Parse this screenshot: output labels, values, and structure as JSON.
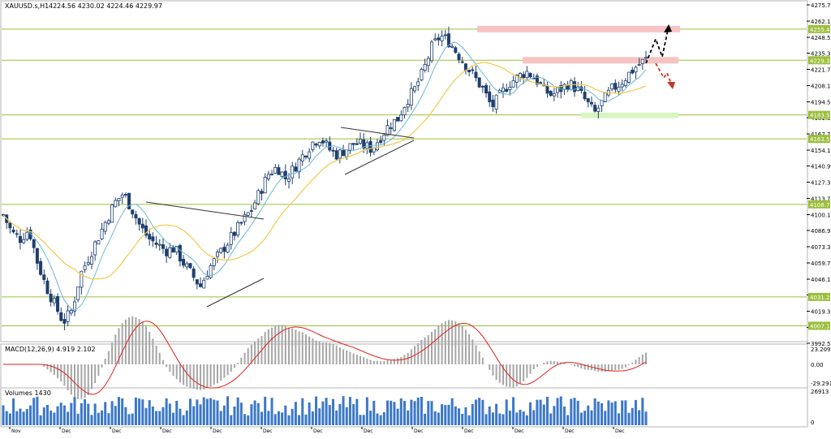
{
  "window": {
    "title": "XAUUSD.s,H1",
    "ohlc": "4224.56 4230.02 4224.46 4229.97"
  },
  "price_axis": {
    "ticks": [
      "4275.70",
      "4262.10",
      "4248.50",
      "4235.30",
      "4221.70",
      "4208.10",
      "4194.50",
      "4181.30",
      "4167.70",
      "4154.10",
      "4140.90",
      "4127.30",
      "4113.70",
      "4100.10",
      "4086.90",
      "4073.30",
      "4059.70",
      "4046.10",
      "4032.90",
      "4019.30",
      "4005.70",
      "3992.50"
    ]
  },
  "level_labels": [
    {
      "price": 4255.45,
      "text": "4255.45",
      "color": "#9bbf3c"
    },
    {
      "price": 4229.32,
      "text": "4229.32",
      "color": "#9bbf3c"
    },
    {
      "price": 4183.58,
      "text": "4183.58",
      "color": "#9bbf3c"
    },
    {
      "price": 4163.55,
      "text": "4163.55",
      "color": "#9bbf3c"
    },
    {
      "price": 4108.73,
      "text": "4108.73",
      "color": "#9bbf3c"
    },
    {
      "price": 4031.28,
      "text": "4031.28",
      "color": "#9bbf3c"
    },
    {
      "price": 4007.13,
      "text": "4007.13",
      "color": "#9bbf3c"
    }
  ],
  "macd": {
    "label": "MACD(12,26,9) 4.919 2.102",
    "ticks": [
      "23.209",
      "0.00",
      "-29.291"
    ]
  },
  "volumes": {
    "label": "Volumes 1430",
    "ticks": [
      "26913",
      "0"
    ]
  },
  "time_axis": {
    "labels": [
      "Nov",
      "Dec",
      "Dec",
      "Dec",
      "Dec",
      "Dec",
      "Dec",
      "Dec",
      "Dec",
      "Dec",
      "Dec",
      "Dec",
      "Dec"
    ]
  },
  "colors": {
    "candle_up": "#ffffff",
    "candle_down": "#1f3f6e",
    "outline": "#1f3f6e",
    "ma_fast": "#6fb7d9",
    "ma_slow": "#f2c94c",
    "level": "#9bbf3c",
    "resistance_zone": "#f6c3c3",
    "support_zone": "#d8f5c2",
    "macd_hist": "#a6a6a6",
    "macd_signal": "#e0201b",
    "volume": "#3b78c8"
  },
  "chart_data": {
    "type": "candlestick",
    "symbol": "XAUUSD.s",
    "timeframe": "H1",
    "ylim": [
      3992.5,
      4275.7
    ],
    "horizontal_levels": [
      4255.45,
      4229.32,
      4183.58,
      4163.55,
      4108.73,
      4031.28,
      4007.13
    ],
    "close_path_points": [
      [
        0,
        4100
      ],
      [
        2,
        4085
      ],
      [
        4,
        4080
      ],
      [
        6,
        4088
      ],
      [
        8,
        4060
      ],
      [
        10,
        4040
      ],
      [
        12,
        4025
      ],
      [
        14,
        4010
      ],
      [
        16,
        4020
      ],
      [
        18,
        4050
      ],
      [
        20,
        4065
      ],
      [
        22,
        4080
      ],
      [
        24,
        4095
      ],
      [
        26,
        4110
      ],
      [
        28,
        4118
      ],
      [
        30,
        4105
      ],
      [
        32,
        4090
      ],
      [
        34,
        4080
      ],
      [
        36,
        4075
      ],
      [
        38,
        4070
      ],
      [
        40,
        4072
      ],
      [
        42,
        4060
      ],
      [
        44,
        4050
      ],
      [
        46,
        4040
      ],
      [
        48,
        4055
      ],
      [
        50,
        4065
      ],
      [
        52,
        4075
      ],
      [
        54,
        4085
      ],
      [
        56,
        4095
      ],
      [
        58,
        4105
      ],
      [
        60,
        4120
      ],
      [
        62,
        4135
      ],
      [
        64,
        4140
      ],
      [
        66,
        4130
      ],
      [
        68,
        4140
      ],
      [
        70,
        4150
      ],
      [
        72,
        4160
      ],
      [
        74,
        4165
      ],
      [
        76,
        4155
      ],
      [
        78,
        4150
      ],
      [
        80,
        4155
      ],
      [
        82,
        4160
      ],
      [
        84,
        4158
      ],
      [
        86,
        4155
      ],
      [
        88,
        4165
      ],
      [
        90,
        4175
      ],
      [
        92,
        4180
      ],
      [
        94,
        4195
      ],
      [
        96,
        4205
      ],
      [
        98,
        4220
      ],
      [
        100,
        4240
      ],
      [
        102,
        4250
      ],
      [
        104,
        4245
      ],
      [
        106,
        4235
      ],
      [
        108,
        4225
      ],
      [
        110,
        4215
      ],
      [
        112,
        4205
      ],
      [
        114,
        4190
      ],
      [
        116,
        4200
      ],
      [
        118,
        4210
      ],
      [
        120,
        4215
      ],
      [
        122,
        4220
      ],
      [
        124,
        4215
      ],
      [
        126,
        4205
      ],
      [
        128,
        4200
      ],
      [
        130,
        4205
      ],
      [
        132,
        4210
      ],
      [
        134,
        4205
      ],
      [
        136,
        4195
      ],
      [
        138,
        4185
      ],
      [
        140,
        4195
      ],
      [
        142,
        4205
      ],
      [
        144,
        4210
      ],
      [
        146,
        4218
      ],
      [
        148,
        4225
      ],
      [
        150,
        4229.97
      ]
    ]
  }
}
